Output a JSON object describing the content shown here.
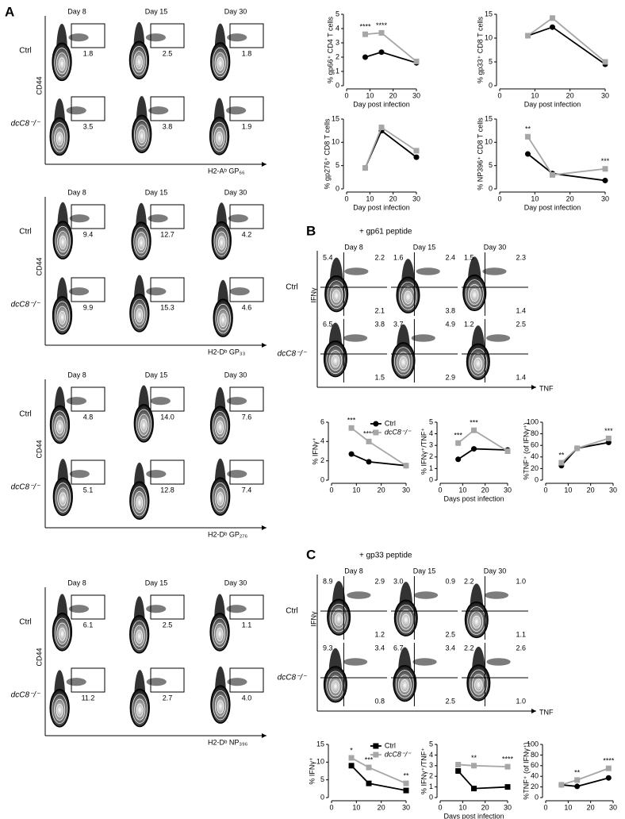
{
  "panel_labels": [
    "A",
    "B",
    "C"
  ],
  "flow_a": [
    {
      "days": [
        "Day 8",
        "Day 15",
        "Day 30"
      ],
      "y_label": "CD44",
      "x_label": "H2-Aᵇ GP₆₆",
      "rows": [
        {
          "label": "Ctrl",
          "gates": [
            "1.8",
            "2.5",
            "1.8"
          ]
        },
        {
          "label": "dcC8⁻/⁻",
          "gates": [
            "3.5",
            "3.8",
            "1.9"
          ]
        }
      ]
    },
    {
      "days": [
        "Day 8",
        "Day 15",
        "Day 30"
      ],
      "y_label": "CD44",
      "x_label": "H2-Dᵇ GP₃₃",
      "rows": [
        {
          "label": "Ctrl",
          "gates": [
            "9.4",
            "12.7",
            "4.2"
          ]
        },
        {
          "label": "dcC8⁻/⁻",
          "gates": [
            "9.9",
            "15.3",
            "4.6"
          ]
        }
      ]
    },
    {
      "days": [
        "Day 8",
        "Day 15",
        "Day 30"
      ],
      "y_label": "CD44",
      "x_label": "H2-Dᵇ GP₂₇₆",
      "rows": [
        {
          "label": "Ctrl",
          "gates": [
            "4.8",
            "14.0",
            "7.6"
          ]
        },
        {
          "label": "dcC8⁻/⁻",
          "gates": [
            "5.1",
            "12.8",
            "7.4"
          ]
        }
      ]
    },
    {
      "days": [
        "Day 8",
        "Day 15",
        "Day 30"
      ],
      "y_label": "CD44",
      "x_label": "H2-Dᵇ NP₃₉₆",
      "rows": [
        {
          "label": "Ctrl",
          "gates": [
            "6.1",
            "2.5",
            "1.1"
          ]
        },
        {
          "label": "dcC8⁻/⁻",
          "gates": [
            "11.2",
            "2.7",
            "4.0"
          ]
        }
      ]
    }
  ],
  "flow_b": {
    "title": "+ gp61 peptide",
    "days": [
      "Day 8",
      "Day 15",
      "Day 30"
    ],
    "y_label": "IFNγ",
    "x_label": "TNF",
    "rows": [
      {
        "label": "Ctrl",
        "quadrants": [
          [
            "5.4",
            "2.2",
            "2.1"
          ],
          [
            "1.6",
            "2.4",
            "3.8"
          ],
          [
            "1.5",
            "2.3",
            "1.4"
          ]
        ]
      },
      {
        "label": "dcC8⁻/⁻",
        "quadrants": [
          [
            "6.5",
            "3.8",
            "1.5"
          ],
          [
            "3.7",
            "4.9",
            "2.9"
          ],
          [
            "1.2",
            "2.5",
            "1.4"
          ]
        ]
      }
    ]
  },
  "flow_c": {
    "title": "+ gp33 peptide",
    "days": [
      "Day 8",
      "Day 15",
      "Day 30"
    ],
    "y_label": "IFNγ",
    "x_label": "TNF",
    "rows": [
      {
        "label": "Ctrl",
        "quadrants": [
          [
            "8.9",
            "2.9",
            "1.2"
          ],
          [
            "3.0",
            "0.9",
            "2.5"
          ],
          [
            "2.2",
            "1.0",
            "1.1"
          ]
        ]
      },
      {
        "label": "dcC8⁻/⁻",
        "quadrants": [
          [
            "9.3",
            "3.4",
            "0.8"
          ],
          [
            "6.7",
            "3.4",
            "2.5"
          ],
          [
            "2.2",
            "2.6",
            "1.0"
          ]
        ]
      }
    ]
  },
  "chart_data": [
    {
      "type": "line",
      "y_label": "% gp66⁺ CD4 T cells",
      "x_label": "Day post infection",
      "x": [
        8,
        15,
        30
      ],
      "xlim": [
        0,
        30
      ],
      "xticks": [
        0,
        10,
        20,
        30
      ],
      "ylim": [
        0,
        5
      ],
      "yticks": [
        0,
        1,
        2,
        3,
        4,
        5
      ],
      "series": [
        {
          "color": "#000000",
          "marker": "circle",
          "values": [
            2.0,
            2.35,
            1.6
          ]
        },
        {
          "color": "#a6a6a6",
          "marker": "square",
          "values": [
            3.6,
            3.7,
            1.7
          ]
        }
      ],
      "annotations": [
        {
          "x": 8,
          "text": "****"
        },
        {
          "x": 15,
          "text": "****"
        }
      ]
    },
    {
      "type": "line",
      "y_label": "% gp33⁺ CD8 T cells",
      "x_label": "Day post infection",
      "x": [
        8,
        15,
        30
      ],
      "xlim": [
        0,
        30
      ],
      "xticks": [
        0,
        10,
        20,
        30
      ],
      "ylim": [
        0,
        15
      ],
      "yticks": [
        0,
        5,
        10,
        15
      ],
      "series": [
        {
          "color": "#000000",
          "marker": "circle",
          "values": [
            10.5,
            12.3,
            4.5
          ]
        },
        {
          "color": "#a6a6a6",
          "marker": "square",
          "values": [
            10.5,
            14.2,
            5.0
          ]
        }
      ]
    },
    {
      "type": "line",
      "y_label": "% gp276⁺ CD8 T cells",
      "x_label": "Day post infection",
      "x": [
        8,
        15,
        30
      ],
      "xlim": [
        0,
        30
      ],
      "xticks": [
        0,
        10,
        20,
        30
      ],
      "ylim": [
        0,
        15
      ],
      "yticks": [
        0,
        5,
        10,
        15
      ],
      "series": [
        {
          "color": "#000000",
          "marker": "circle",
          "values": [
            4.5,
            12.5,
            6.8
          ]
        },
        {
          "color": "#a6a6a6",
          "marker": "square",
          "values": [
            4.5,
            13.2,
            8.2
          ]
        }
      ]
    },
    {
      "type": "line",
      "y_label": "% NP396⁺ CD8 T cells",
      "x_label": "Day post infection",
      "x": [
        8,
        15,
        30
      ],
      "xlim": [
        0,
        30
      ],
      "xticks": [
        0,
        10,
        20,
        30
      ],
      "ylim": [
        0,
        15
      ],
      "yticks": [
        0,
        5,
        10,
        15
      ],
      "series": [
        {
          "color": "#000000",
          "marker": "circle",
          "values": [
            7.5,
            3.3,
            1.8
          ]
        },
        {
          "color": "#a6a6a6",
          "marker": "square",
          "values": [
            11.2,
            3.0,
            4.3
          ]
        }
      ],
      "annotations": [
        {
          "x": 8,
          "text": "**"
        },
        {
          "x": 30,
          "text": "***"
        }
      ]
    },
    {
      "type": "line",
      "y_label": "% IFNγ⁺",
      "x": [
        8,
        15,
        30
      ],
      "xlim": [
        0,
        30
      ],
      "xticks": [
        0,
        10,
        20,
        30
      ],
      "ylim": [
        0,
        6
      ],
      "yticks": [
        0,
        2,
        4,
        6
      ],
      "legend": "upper right",
      "series": [
        {
          "name": "Ctrl",
          "color": "#000000",
          "marker": "circle",
          "values": [
            2.7,
            1.9,
            1.5
          ]
        },
        {
          "name": "dcC8⁻/⁻",
          "color": "#a6a6a6",
          "marker": "square",
          "values": [
            5.4,
            4.0,
            1.5
          ]
        }
      ],
      "annotations": [
        {
          "x": 8,
          "text": "***"
        },
        {
          "x": 15,
          "text": "****"
        }
      ]
    },
    {
      "type": "line",
      "y_label": "% IFNγ⁺/TNF⁺",
      "x_label": "Days post infection",
      "x": [
        8,
        15,
        30
      ],
      "xlim": [
        0,
        30
      ],
      "xticks": [
        0,
        10,
        20,
        30
      ],
      "ylim": [
        0,
        5
      ],
      "yticks": [
        0,
        1,
        2,
        3,
        4,
        5
      ],
      "series": [
        {
          "color": "#000000",
          "marker": "circle",
          "values": [
            1.8,
            2.7,
            2.6
          ]
        },
        {
          "color": "#a6a6a6",
          "marker": "square",
          "values": [
            3.2,
            4.3,
            2.5
          ]
        }
      ],
      "annotations": [
        {
          "x": 8,
          "text": "***"
        },
        {
          "x": 15,
          "text": "***"
        }
      ]
    },
    {
      "type": "line",
      "y_label": "%TNF⁺ (of IFNγ⁺)",
      "x": [
        7,
        14,
        28
      ],
      "xlim": [
        0,
        30
      ],
      "xticks": [
        0,
        10,
        20,
        30
      ],
      "ylim": [
        0,
        100
      ],
      "yticks": [
        0,
        20,
        40,
        60,
        80,
        100
      ],
      "series": [
        {
          "color": "#000000",
          "marker": "circle",
          "values": [
            25,
            55,
            65
          ]
        },
        {
          "color": "#a6a6a6",
          "marker": "square",
          "values": [
            30,
            55,
            72
          ]
        }
      ],
      "annotations": [
        {
          "x": 7,
          "text": "**"
        },
        {
          "x": 28,
          "text": "***"
        }
      ]
    },
    {
      "type": "line",
      "y_label": "% IFNγ⁺",
      "x": [
        8,
        15,
        30
      ],
      "xlim": [
        0,
        30
      ],
      "xticks": [
        0,
        10,
        20,
        30
      ],
      "ylim": [
        0,
        15
      ],
      "yticks": [
        0,
        5,
        10,
        15
      ],
      "legend": "upper right",
      "series": [
        {
          "name": "Ctrl",
          "color": "#000000",
          "marker": "square",
          "values": [
            9.0,
            4.0,
            2.0
          ]
        },
        {
          "name": "dcC8⁻/⁻",
          "color": "#a6a6a6",
          "marker": "square",
          "values": [
            11.2,
            8.5,
            4.0
          ]
        }
      ],
      "annotations": [
        {
          "x": 8,
          "text": "*"
        },
        {
          "x": 15,
          "text": "***"
        },
        {
          "x": 30,
          "text": "**"
        }
      ]
    },
    {
      "type": "line",
      "y_label": "% IFNγ⁺/TNF⁺",
      "x_label": "Days post infection",
      "x": [
        8,
        15,
        30
      ],
      "xlim": [
        0,
        30
      ],
      "xticks": [
        0,
        10,
        20,
        30
      ],
      "ylim": [
        0,
        5
      ],
      "yticks": [
        0,
        1,
        2,
        3,
        4,
        5
      ],
      "series": [
        {
          "color": "#000000",
          "marker": "square",
          "values": [
            2.5,
            0.85,
            1.0
          ]
        },
        {
          "color": "#a6a6a6",
          "marker": "square",
          "values": [
            3.1,
            3.0,
            2.9
          ]
        }
      ],
      "annotations": [
        {
          "x": 15,
          "text": "**"
        },
        {
          "x": 30,
          "text": "****"
        }
      ]
    },
    {
      "type": "line",
      "y_label": "%TNF⁺ (of IFNγ⁺)",
      "x": [
        7,
        14,
        28
      ],
      "xlim": [
        0,
        30
      ],
      "xticks": [
        0,
        10,
        20,
        30
      ],
      "ylim": [
        0,
        100
      ],
      "yticks": [
        0,
        20,
        40,
        60,
        80,
        100
      ],
      "series": [
        {
          "color": "#000000",
          "marker": "circle",
          "values": [
            24,
            21,
            37
          ]
        },
        {
          "color": "#a6a6a6",
          "marker": "square",
          "values": [
            24,
            33,
            55
          ]
        }
      ],
      "annotations": [
        {
          "x": 14,
          "text": "**"
        },
        {
          "x": 28,
          "text": "****"
        }
      ]
    }
  ]
}
